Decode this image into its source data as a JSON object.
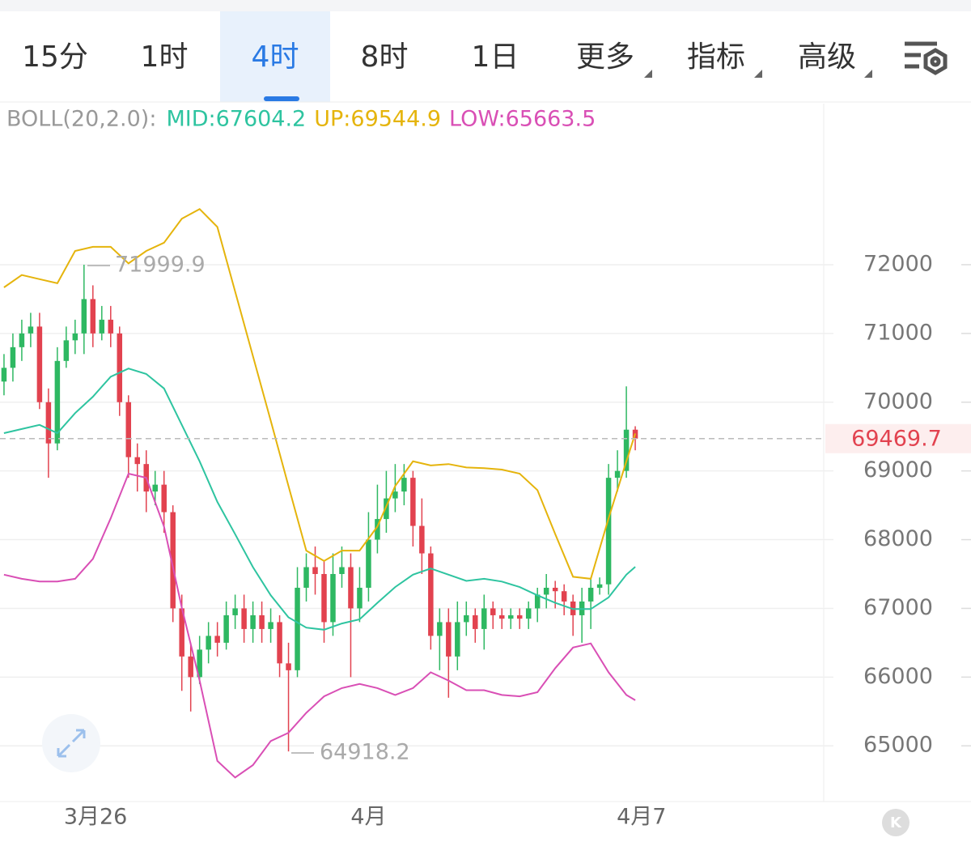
{
  "tabs": {
    "items": [
      "15分",
      "1时",
      "4时",
      "8时",
      "1日",
      "更多",
      "指标",
      "高级"
    ],
    "active": 2
  },
  "chart_data": {
    "type": "candlestick",
    "indicator_label": "BOLL(20,2.0):",
    "categories": [
      null,
      null,
      null,
      null,
      null,
      null,
      null,
      null,
      null,
      null,
      null,
      null,
      null,
      null,
      null,
      null,
      null,
      null,
      null,
      null,
      null,
      null,
      null,
      null,
      null,
      null,
      null,
      null,
      null,
      null,
      null,
      null,
      null,
      null,
      null,
      null,
      null,
      null,
      null,
      null,
      null,
      null,
      null,
      null,
      null,
      null,
      null,
      null,
      null,
      null,
      null,
      null,
      null,
      null,
      null,
      null,
      null,
      null,
      null,
      null,
      null,
      null,
      null,
      null,
      null,
      null,
      null,
      null,
      null,
      null,
      null,
      null
    ],
    "open": [
      70300,
      70500,
      70800,
      71000,
      71100,
      70000,
      69400,
      70600,
      70900,
      71000,
      71500,
      71000,
      71200,
      71000,
      70000,
      69200,
      69100,
      68700,
      68800,
      68400,
      67000,
      66300,
      66000,
      66400,
      66600,
      66500,
      66900,
      67000,
      66700,
      66900,
      66700,
      66800,
      66200,
      66100,
      67300,
      67600,
      67500,
      66800,
      67500,
      67600,
      67000,
      67300,
      68000,
      68300,
      68600,
      68700,
      68900,
      68200,
      67800,
      66600,
      66800,
      66300,
      66800,
      66900,
      66700,
      67000,
      66900,
      66850,
      66900,
      66850,
      67000,
      67200,
      67300,
      67250,
      67100,
      66900,
      67100,
      67300,
      67350,
      68900,
      69000,
      69600
    ],
    "high": [
      70700,
      71000,
      71200,
      71300,
      71300,
      70200,
      70800,
      71100,
      71200,
      71999.9,
      71700,
      71400,
      71400,
      71100,
      70100,
      69400,
      69300,
      69000,
      69000,
      68500,
      67200,
      66500,
      66600,
      66800,
      66800,
      67100,
      67200,
      67200,
      67100,
      67100,
      67000,
      66900,
      66500,
      67600,
      67800,
      67900,
      67700,
      67800,
      67900,
      67800,
      67600,
      68400,
      68800,
      69000,
      69100,
      69100,
      69000,
      68600,
      67900,
      67000,
      67000,
      67100,
      67100,
      67000,
      67200,
      67100,
      67000,
      67000,
      67000,
      67100,
      67300,
      67500,
      67400,
      67350,
      67200,
      67300,
      67450,
      67450,
      69100,
      69300,
      70230,
      69650
    ],
    "low": [
      70100,
      70300,
      70600,
      70800,
      69900,
      68900,
      69300,
      70500,
      70700,
      70700,
      70800,
      70900,
      70800,
      69800,
      68900,
      68700,
      68400,
      68500,
      68100,
      66800,
      65800,
      65500,
      65900,
      66200,
      66300,
      66400,
      66700,
      66500,
      66500,
      66500,
      66500,
      66000,
      64918.2,
      66000,
      67100,
      67200,
      66500,
      66600,
      67300,
      66000,
      66800,
      67100,
      67800,
      68100,
      68400,
      68500,
      67900,
      67500,
      66400,
      66100,
      65700,
      66100,
      66600,
      66500,
      66400,
      66700,
      66700,
      66700,
      66700,
      66700,
      66800,
      67000,
      67000,
      66900,
      66600,
      66500,
      66700,
      67200,
      67200,
      68700,
      68900,
      69300
    ],
    "close": [
      70500,
      70800,
      71000,
      71100,
      70000,
      69400,
      70600,
      70900,
      71000,
      71500,
      71000,
      71200,
      71000,
      70000,
      69200,
      69100,
      68700,
      68800,
      68400,
      67000,
      66300,
      66000,
      66400,
      66600,
      66500,
      66900,
      67000,
      66700,
      66900,
      66700,
      66800,
      66200,
      66100,
      67300,
      67600,
      67500,
      66800,
      67500,
      67600,
      67000,
      67300,
      68000,
      68300,
      68600,
      68700,
      68900,
      68200,
      67800,
      66600,
      66800,
      66300,
      66800,
      66900,
      66700,
      67000,
      66900,
      66850,
      66900,
      66850,
      67000,
      67200,
      67300,
      67250,
      67100,
      66900,
      67100,
      67300,
      67350,
      68900,
      69000,
      69600,
      69469.7
    ],
    "up_color": "#2eb862",
    "down_color": "#e2424f",
    "bands": {
      "x": [
        0,
        2,
        4,
        6,
        8,
        10,
        12,
        14,
        16,
        18,
        20,
        22,
        24,
        26,
        28,
        30,
        32,
        34,
        36,
        38,
        40,
        42,
        44,
        46,
        48,
        50,
        52,
        54,
        56,
        58,
        60,
        62,
        64,
        66,
        68,
        70,
        71
      ],
      "series": [
        {
          "name": "MID:67604.2",
          "color": "#2ec4a0",
          "values": [
            69550,
            69610,
            69670,
            69550,
            69840,
            70080,
            70370,
            70490,
            70410,
            70200,
            69670,
            69140,
            68550,
            68080,
            67600,
            67190,
            66870,
            66720,
            66690,
            66780,
            66840,
            67080,
            67310,
            67490,
            67580,
            67490,
            67400,
            67430,
            67390,
            67310,
            67190,
            67080,
            66990,
            66990,
            67160,
            67490,
            67604.2
          ]
        },
        {
          "name": "UP:69544.9",
          "color": "#e5b40c",
          "values": [
            71670,
            71850,
            71790,
            71730,
            72200,
            72260,
            72260,
            72020,
            72200,
            72320,
            72670,
            72810,
            72550,
            71610,
            70670,
            69730,
            68780,
            67840,
            67690,
            67840,
            67840,
            68190,
            68780,
            69140,
            69080,
            69100,
            69050,
            69040,
            69020,
            68960,
            68720,
            68080,
            67460,
            67430,
            68310,
            69140,
            69544.9
          ]
        },
        {
          "name": "LOW:65663.5",
          "color": "#d94fb5",
          "values": [
            67490,
            67430,
            67390,
            67390,
            67430,
            67720,
            68310,
            68960,
            68900,
            68190,
            67010,
            65950,
            64780,
            64540,
            64720,
            65070,
            65190,
            65480,
            65720,
            65840,
            65900,
            65840,
            65740,
            65840,
            66070,
            65950,
            65810,
            65810,
            65740,
            65720,
            65780,
            66130,
            66430,
            66490,
            66070,
            65740,
            65663.5
          ]
        }
      ]
    },
    "xlim": [
      -0.45,
      92.2
    ],
    "xticks": [
      {
        "value": 10.3,
        "label": "3月26"
      },
      {
        "value": 41,
        "label": "4月"
      },
      {
        "value": 71.7,
        "label": "4月7"
      }
    ],
    "ylim": [
      64190,
      74320
    ],
    "yticks": [
      65000,
      66000,
      67000,
      68000,
      69000,
      70000,
      71000,
      72000
    ],
    "grid": true
  }
}
